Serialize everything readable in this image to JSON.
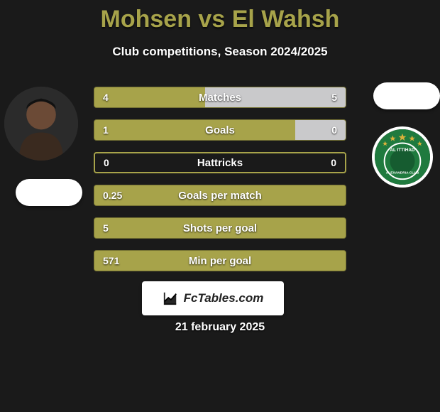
{
  "title": "Mohsen vs El Wahsh",
  "subtitle": "Club competitions, Season 2024/2025",
  "brand": "FcTables.com",
  "date": "21 february 2025",
  "colors": {
    "accent": "#a7a34a",
    "bar_primary": "#a7a34a",
    "bar_secondary": "#c9c9cb",
    "bar_border": "#54522d",
    "background": "#1a1a1a",
    "text": "#ffffff"
  },
  "left_player": {
    "name": "Mohsen",
    "avatar_bg": "#333333",
    "badge_bg": "#ffffff"
  },
  "right_player": {
    "name": "El Wahsh",
    "badge_bg": "#1f7a3e",
    "badge_label": "AL ITTIHAD"
  },
  "stats": [
    {
      "label": "Matches",
      "left_value": "4",
      "right_value": "5",
      "left_pct": 44,
      "right_pct": 56,
      "left_color": "#a7a34a",
      "right_color": "#c9c9cb"
    },
    {
      "label": "Goals",
      "left_value": "1",
      "right_value": "0",
      "left_pct": 80,
      "right_pct": 20,
      "left_color": "#a7a34a",
      "right_color": "#c9c9cb"
    },
    {
      "label": "Hattricks",
      "left_value": "0",
      "right_value": "0",
      "left_pct": 0,
      "right_pct": 0,
      "left_color": "#a7a34a",
      "right_color": "#a7a34a",
      "border_only": true
    },
    {
      "label": "Goals per match",
      "left_value": "0.25",
      "right_value": "",
      "left_pct": 100,
      "right_pct": 0,
      "left_color": "#a7a34a",
      "right_color": "#a7a34a"
    },
    {
      "label": "Shots per goal",
      "left_value": "5",
      "right_value": "",
      "left_pct": 100,
      "right_pct": 0,
      "left_color": "#a7a34a",
      "right_color": "#a7a34a"
    },
    {
      "label": "Min per goal",
      "left_value": "571",
      "right_value": "",
      "left_pct": 100,
      "right_pct": 0,
      "left_color": "#a7a34a",
      "right_color": "#a7a34a"
    }
  ]
}
